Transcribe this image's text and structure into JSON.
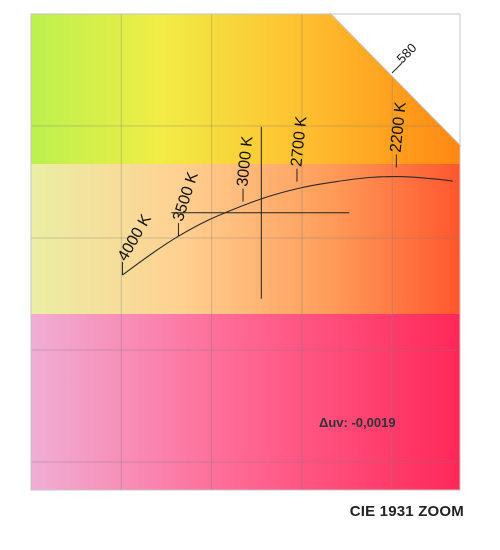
{
  "chart_data": {
    "type": "line",
    "title": "CIE 1931 ZOOM",
    "series": [
      {
        "x": [
          0.3805,
          0.3933,
          0.4052,
          0.4175,
          0.4305,
          0.445,
          0.46,
          0.475,
          0.49,
          0.505,
          0.52,
          0.5268
        ],
        "y": [
          0.3768,
          0.3843,
          0.3906,
          0.396,
          0.4005,
          0.4048,
          0.408,
          0.4101,
          0.4116,
          0.4119,
          0.411,
          0.4103
        ]
      }
    ],
    "isotherms": [
      {
        "label": "4000 K",
        "x": 0.3805,
        "y": 0.3768
      },
      {
        "label": "3500 K",
        "x": 0.4053,
        "y": 0.3907
      },
      {
        "label": "3000 K",
        "x": 0.4339,
        "y": 0.403
      },
      {
        "label": "2700 K",
        "x": 0.4578,
        "y": 0.4101
      },
      {
        "label": "2200 K",
        "x": 0.5018,
        "y": 0.4152
      }
    ],
    "wavelength_label": "580",
    "measurement": {
      "x": 0.442,
      "y": 0.399,
      "label": "Δuv: -0,0019"
    },
    "xlim": [
      0.34,
      0.53
    ],
    "ylim": [
      0.3,
      0.47
    ],
    "grid": true,
    "gridlines_x": [
      0.34,
      0.38,
      0.42,
      0.46,
      0.5
    ],
    "gridlines_y": [
      0.31,
      0.35,
      0.39,
      0.43,
      0.47
    ]
  }
}
